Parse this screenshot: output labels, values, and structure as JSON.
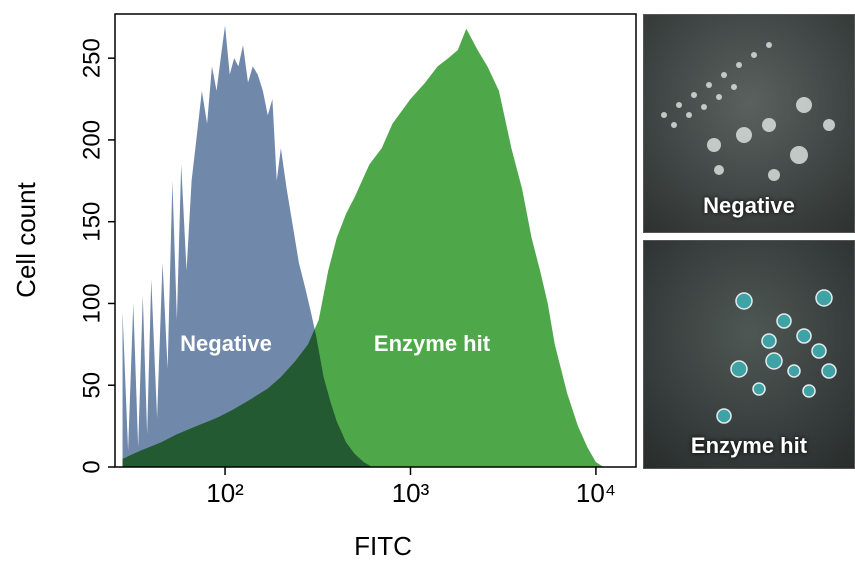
{
  "chart_data": {
    "type": "area",
    "xlabel": "FITC",
    "ylabel": "Cell count",
    "xscale": "log",
    "xlim": [
      25.5,
      16450
    ],
    "ylim": [
      0,
      277
    ],
    "xticks": [
      {
        "value": 100,
        "label": "10²"
      },
      {
        "value": 1000,
        "label": "10³"
      },
      {
        "value": 10000,
        "label": "10⁴"
      }
    ],
    "yticks": [
      0,
      50,
      100,
      150,
      200,
      250
    ],
    "grid": false,
    "series": [
      {
        "name": "Enzyme hit",
        "color": "#4ea84a",
        "x": [
          28,
          35,
          45,
          55,
          70,
          90,
          110,
          140,
          170,
          200,
          240,
          280,
          320,
          360,
          400,
          450,
          500,
          600,
          700,
          800,
          1000,
          1200,
          1400,
          1600,
          1800,
          2000,
          2300,
          2600,
          3000,
          3500,
          4000,
          4500,
          5000,
          5500,
          6000,
          7000,
          8000,
          9000,
          10000,
          11000
        ],
        "values": [
          5,
          10,
          15,
          20,
          25,
          30,
          35,
          42,
          48,
          55,
          65,
          75,
          90,
          120,
          140,
          155,
          165,
          185,
          195,
          210,
          225,
          235,
          245,
          250,
          255,
          268,
          255,
          245,
          230,
          195,
          170,
          140,
          120,
          100,
          75,
          45,
          25,
          12,
          3,
          0
        ]
      },
      {
        "name": "Negative",
        "color": "#7089ab",
        "x": [
          28,
          30,
          32,
          34,
          36,
          38,
          40,
          43,
          46,
          49,
          52,
          55,
          58,
          62,
          66,
          70,
          75,
          80,
          85,
          90,
          96,
          100,
          106,
          112,
          118,
          125,
          133,
          141,
          150,
          160,
          170,
          180,
          190,
          200,
          215,
          230,
          250,
          270,
          290,
          310,
          340,
          370,
          400,
          450,
          500,
          560,
          620
        ],
        "values": [
          95,
          10,
          100,
          12,
          105,
          20,
          115,
          30,
          125,
          60,
          175,
          90,
          185,
          120,
          175,
          200,
          230,
          210,
          245,
          230,
          255,
          270,
          240,
          250,
          245,
          258,
          235,
          245,
          240,
          230,
          215,
          225,
          175,
          195,
          170,
          150,
          125,
          110,
          95,
          80,
          55,
          40,
          28,
          15,
          8,
          3,
          0
        ]
      }
    ]
  },
  "image_panels": [
    "Negative",
    "Enzyme hit"
  ]
}
